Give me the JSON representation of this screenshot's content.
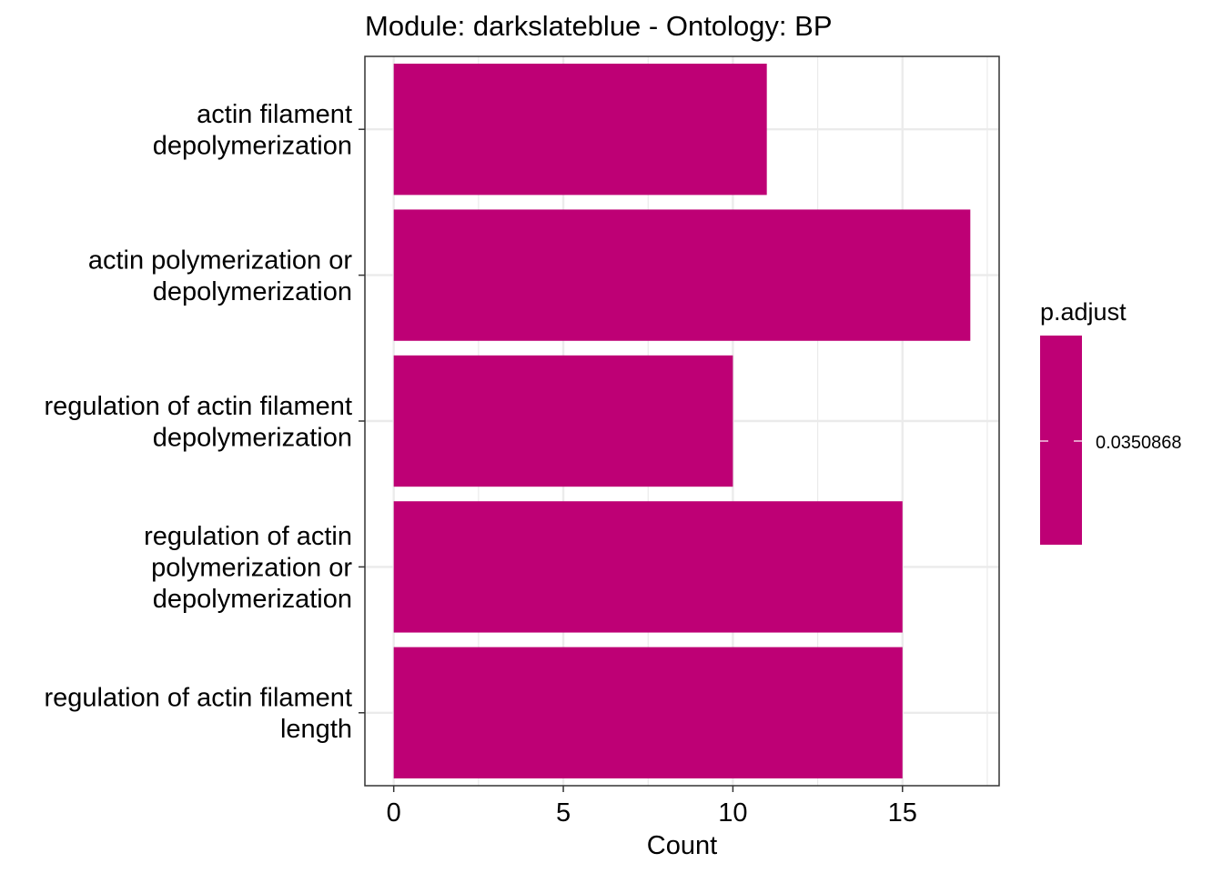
{
  "chart_data": {
    "type": "bar",
    "orientation": "horizontal",
    "title": "Module: darkslateblue - Ontology: BP",
    "xlabel": "Count",
    "ylabel": "",
    "categories": [
      [
        "actin filament",
        "depolymerization"
      ],
      [
        "actin polymerization or",
        "depolymerization"
      ],
      [
        "regulation of actin filament",
        "depolymerization"
      ],
      [
        "regulation of actin",
        "polymerization or",
        "depolymerization"
      ],
      [
        "regulation of actin filament",
        "length"
      ]
    ],
    "values": [
      11,
      17,
      10,
      15,
      15
    ],
    "xlim": [
      -0.85,
      17.85
    ],
    "xticks": [
      0,
      5,
      10,
      15
    ],
    "grid": true,
    "bar_color": "#BE0075",
    "legend": {
      "title": "p.adjust",
      "label": "0.0350868",
      "color": "#BE0075",
      "position": "right"
    }
  }
}
